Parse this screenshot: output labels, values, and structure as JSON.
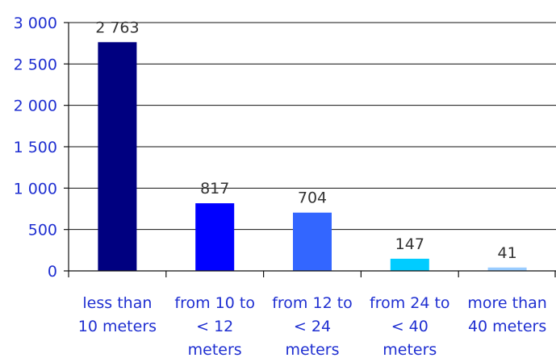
{
  "chart_data": {
    "type": "bar",
    "categories": [
      [
        "less than",
        "10 meters"
      ],
      [
        "from 10 to",
        "< 12",
        "meters"
      ],
      [
        "from 12 to",
        "< 24",
        "meters"
      ],
      [
        "from 24 to",
        "< 40",
        "meters"
      ],
      [
        "more than",
        "40 meters"
      ]
    ],
    "values": [
      2763,
      817,
      704,
      147,
      41
    ],
    "value_labels": [
      "2 763",
      "817",
      "704",
      "147",
      "41"
    ],
    "bar_colors": [
      "#000080",
      "#0000ff",
      "#3366ff",
      "#00ccff",
      "#99ccff"
    ],
    "title": "",
    "xlabel": "",
    "ylabel": "",
    "ylim": [
      0,
      3000
    ],
    "yticks": [
      0,
      500,
      1000,
      1500,
      2000,
      2500,
      3000
    ],
    "ytick_labels": [
      "0",
      "500",
      "1 000",
      "1 500",
      "2 000",
      "2 500",
      "3 000"
    ],
    "grid": true,
    "legend": "none"
  }
}
